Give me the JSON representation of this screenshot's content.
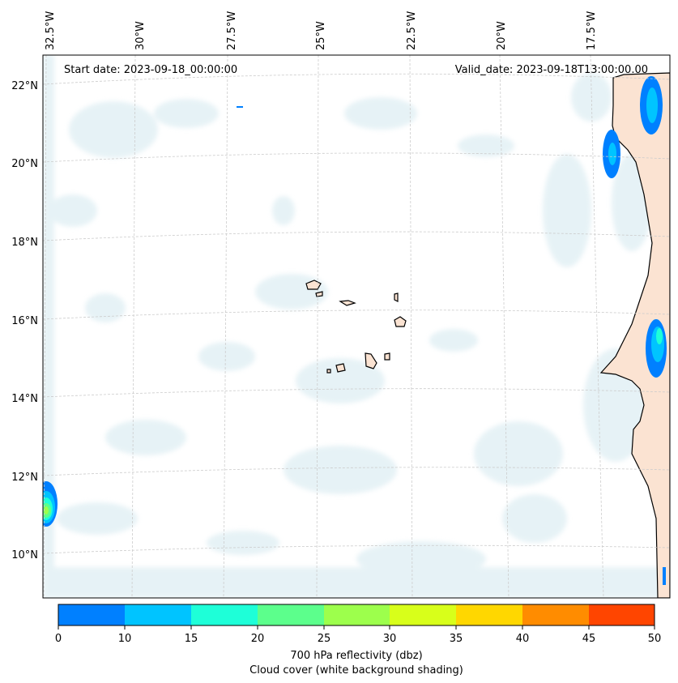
{
  "header": {
    "start_date": "Start date: 2023-09-18_00:00:00",
    "valid_date": "Valid_date: 2023-09-18T13:00:00.00"
  },
  "longitude_ticks": [
    "32.5°W",
    "30°W",
    "27.5°W",
    "25°W",
    "22.5°W",
    "20°W",
    "17.5°W"
  ],
  "latitude_ticks": [
    "22°N",
    "20°N",
    "18°N",
    "16°N",
    "14°N",
    "12°N",
    "10°N"
  ],
  "colorbar": {
    "title": "700 hPa reflectivity (dbz)",
    "subtitle": "Cloud cover (white background shading)",
    "ticks": [
      "0",
      "10",
      "15",
      "20",
      "25",
      "30",
      "35",
      "40",
      "45",
      "50"
    ],
    "colors": [
      "#0080ff",
      "#00c4ff",
      "#1effd8",
      "#5cff8c",
      "#9dff4c",
      "#d8ff1a",
      "#ffd700",
      "#ff8c00",
      "#ff4500"
    ]
  },
  "map": {
    "cloud_color": "#d3e8ef",
    "land_color": "#fbe3d2",
    "coast_color": "#000000",
    "grid_color": "#cccccc"
  }
}
